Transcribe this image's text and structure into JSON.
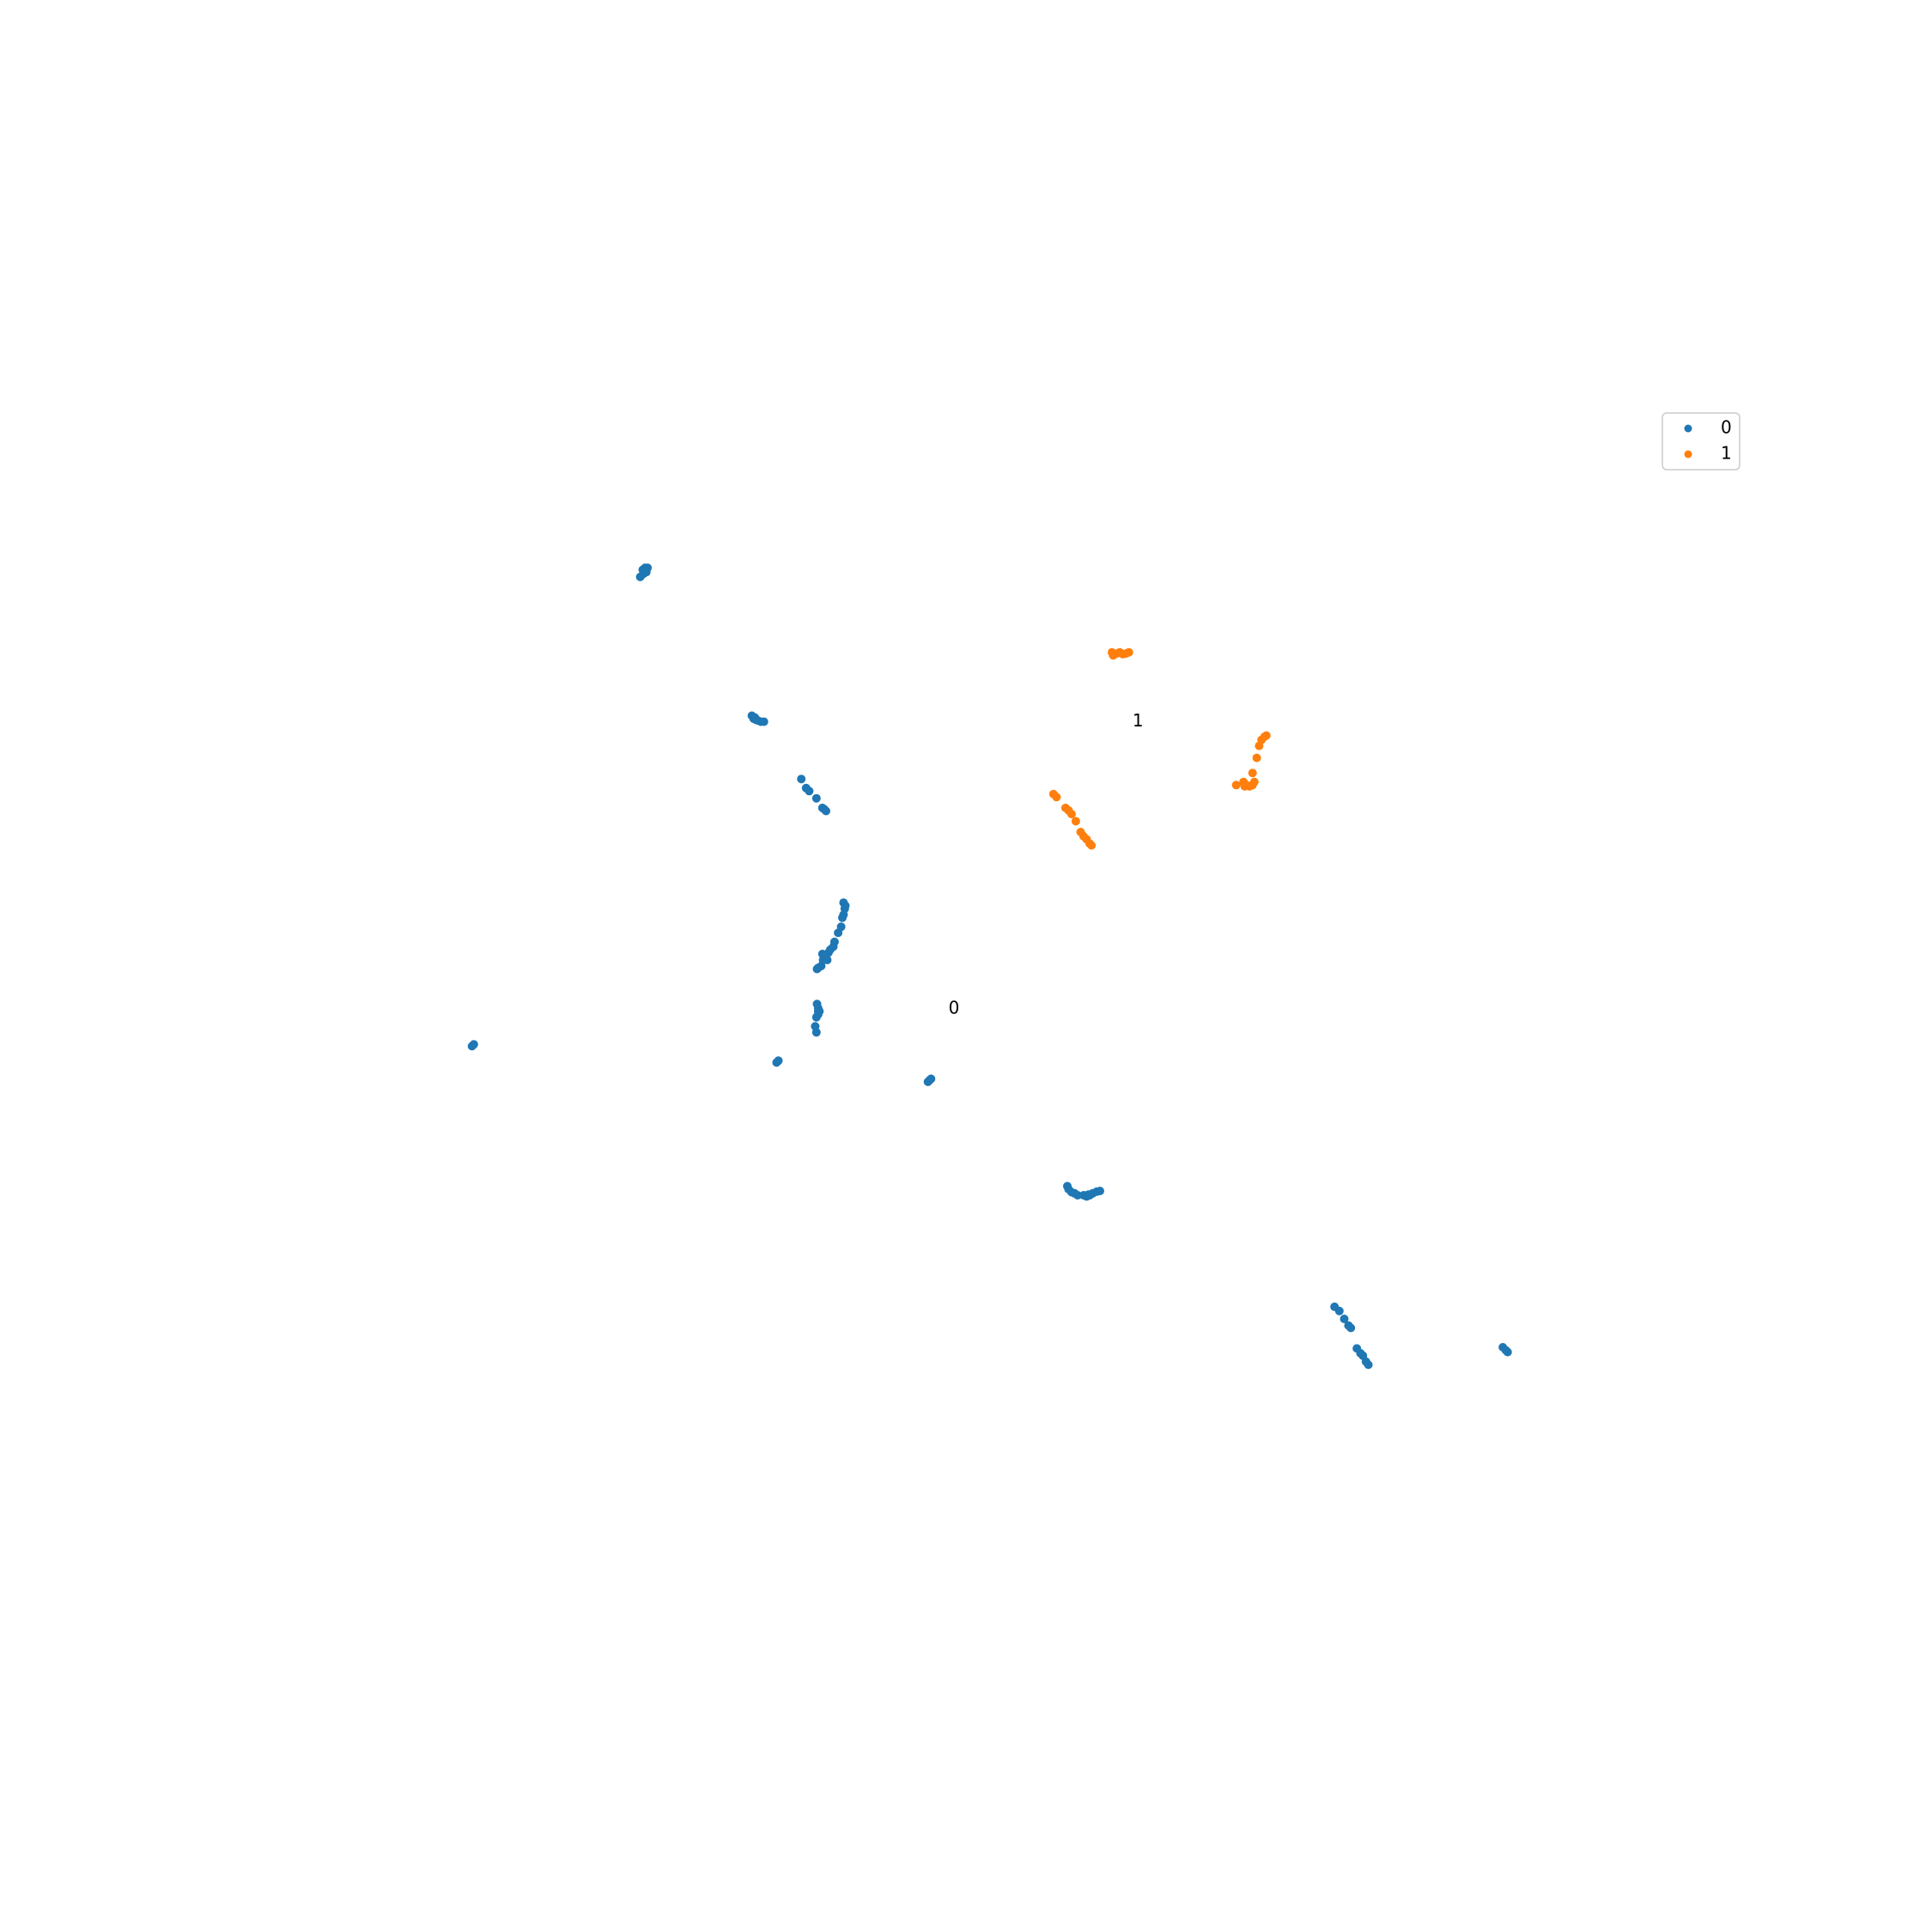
{
  "chart_data": {
    "type": "scatter",
    "title": "",
    "xlabel": "",
    "ylabel": "",
    "axes_visible": false,
    "grid": false,
    "legend_placement": "top-right",
    "xlim": [
      -12,
      12
    ],
    "ylim": [
      -12,
      12
    ],
    "series": [
      {
        "name": "0",
        "color": "#1f77b4",
        "points": [
          [
            -5.4,
            6.45
          ],
          [
            -5.35,
            6.5
          ],
          [
            -5.3,
            6.53
          ],
          [
            -5.36,
            6.57
          ],
          [
            -5.32,
            6.6
          ],
          [
            -5.28,
            6.6
          ],
          [
            -5.33,
            6.56
          ],
          [
            -3.55,
            4.15
          ],
          [
            -3.52,
            4.1
          ],
          [
            -3.48,
            4.08
          ],
          [
            -3.45,
            4.07
          ],
          [
            -3.4,
            4.05
          ],
          [
            -3.35,
            4.05
          ],
          [
            -3.5,
            4.12
          ],
          [
            -2.73,
            3.1
          ],
          [
            -2.65,
            2.95
          ],
          [
            -2.6,
            2.9
          ],
          [
            -2.48,
            2.78
          ],
          [
            -2.38,
            2.62
          ],
          [
            -2.35,
            2.6
          ],
          [
            -2.32,
            2.57
          ],
          [
            -2.03,
            1.05
          ],
          [
            -2.0,
            1.0
          ],
          [
            -2.01,
            0.95
          ],
          [
            -2.03,
            0.85
          ],
          [
            -2.05,
            0.8
          ],
          [
            -2.07,
            0.65
          ],
          [
            -2.12,
            0.55
          ],
          [
            -2.18,
            0.4
          ],
          [
            -2.2,
            0.32
          ],
          [
            -2.25,
            0.27
          ],
          [
            -2.28,
            0.22
          ],
          [
            -2.32,
            0.15
          ],
          [
            -2.37,
            0.1
          ],
          [
            -2.4,
            0.0
          ],
          [
            -2.45,
            -0.03
          ],
          [
            -2.47,
            -0.05
          ],
          [
            -2.3,
            0.1
          ],
          [
            -2.38,
            0.2
          ],
          [
            -2.47,
            -0.63
          ],
          [
            -2.45,
            -0.7
          ],
          [
            -2.43,
            -0.75
          ],
          [
            -2.45,
            -0.8
          ],
          [
            -2.48,
            -0.85
          ],
          [
            -2.5,
            -1.0
          ],
          [
            -2.48,
            -1.1
          ],
          [
            -2.45,
            -0.75
          ],
          [
            -8.19,
            -1.33
          ],
          [
            -8.16,
            -1.3
          ],
          [
            -3.14,
            -1.6
          ],
          [
            -3.11,
            -1.57
          ],
          [
            -0.63,
            -1.92
          ],
          [
            -0.6,
            -1.89
          ],
          [
            -0.58,
            -1.87
          ],
          [
            1.68,
            -3.65
          ],
          [
            1.7,
            -3.7
          ],
          [
            1.75,
            -3.75
          ],
          [
            1.8,
            -3.77
          ],
          [
            1.85,
            -3.8
          ],
          [
            1.95,
            -3.8
          ],
          [
            2.0,
            -3.82
          ],
          [
            2.05,
            -3.8
          ],
          [
            2.1,
            -3.77
          ],
          [
            2.17,
            -3.74
          ],
          [
            2.22,
            -3.73
          ],
          [
            2.03,
            -3.79
          ],
          [
            6.11,
            -5.65
          ],
          [
            6.19,
            -5.72
          ],
          [
            6.27,
            -5.85
          ],
          [
            6.34,
            -5.96
          ],
          [
            6.38,
            -6.0
          ],
          [
            6.48,
            -6.34
          ],
          [
            6.54,
            -6.42
          ],
          [
            6.58,
            -6.46
          ],
          [
            6.63,
            -6.56
          ],
          [
            6.67,
            -6.61
          ],
          [
            8.9,
            -6.32
          ],
          [
            8.95,
            -6.37
          ],
          [
            8.98,
            -6.4
          ]
        ]
      },
      {
        "name": "1",
        "color": "#ff7f0e",
        "points": [
          [
            2.42,
            5.2
          ],
          [
            2.44,
            5.15
          ],
          [
            2.5,
            5.18
          ],
          [
            2.55,
            5.2
          ],
          [
            2.6,
            5.17
          ],
          [
            2.65,
            5.18
          ],
          [
            2.7,
            5.2
          ],
          [
            2.45,
            5.18
          ],
          [
            1.45,
            2.85
          ],
          [
            1.5,
            2.8
          ],
          [
            1.65,
            2.62
          ],
          [
            1.7,
            2.58
          ],
          [
            1.75,
            2.52
          ],
          [
            1.82,
            2.4
          ],
          [
            1.9,
            2.22
          ],
          [
            1.95,
            2.15
          ],
          [
            2.0,
            2.1
          ],
          [
            2.05,
            2.03
          ],
          [
            2.08,
            2.0
          ],
          [
            4.48,
            3.0
          ],
          [
            4.6,
            3.05
          ],
          [
            4.65,
            3.0
          ],
          [
            4.7,
            2.98
          ],
          [
            4.75,
            3.0
          ],
          [
            4.78,
            3.05
          ],
          [
            4.75,
            3.2
          ],
          [
            4.82,
            3.45
          ],
          [
            4.86,
            3.65
          ],
          [
            4.9,
            3.75
          ],
          [
            4.95,
            3.8
          ],
          [
            4.98,
            3.82
          ],
          [
            4.62,
            2.98
          ]
        ]
      }
    ],
    "annotations": [
      {
        "text": "0",
        "x": -0.2,
        "y": -0.71
      },
      {
        "text": "1",
        "x": 2.85,
        "y": 4.05
      }
    ]
  }
}
